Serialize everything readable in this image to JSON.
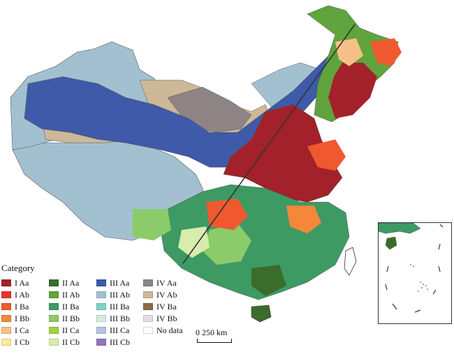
{
  "legend": {
    "title": "Category",
    "items": [
      {
        "label": "I Aa",
        "color": "#a3212a"
      },
      {
        "label": "I Ab",
        "color": "#e8332a"
      },
      {
        "label": "I Ba",
        "color": "#f0592f"
      },
      {
        "label": "I Bb",
        "color": "#f4873a"
      },
      {
        "label": "I Ca",
        "color": "#f8c089"
      },
      {
        "label": "I Cb",
        "color": "#f8ec96"
      },
      {
        "label": "II Aa",
        "color": "#3a6d2c"
      },
      {
        "label": "II Ab",
        "color": "#5fa43d"
      },
      {
        "label": "II Ba",
        "color": "#3d9a63"
      },
      {
        "label": "II Bb",
        "color": "#8ccb6a"
      },
      {
        "label": "II Ca",
        "color": "#a5cf3f"
      },
      {
        "label": "II Cb",
        "color": "#d9ecae"
      },
      {
        "label": "III Aa",
        "color": "#3e5aa8"
      },
      {
        "label": "III Ab",
        "color": "#a3c0d0"
      },
      {
        "label": "III Ba",
        "color": "#7fd3c8"
      },
      {
        "label": "III Bb",
        "color": "#d2ecde"
      },
      {
        "label": "III Ca",
        "color": "#b4c4e6"
      },
      {
        "label": "III Cb",
        "color": "#8f77b8"
      },
      {
        "label": "IV Aa",
        "color": "#8e8486"
      },
      {
        "label": "IV Ab",
        "color": "#cdb898"
      },
      {
        "label": "IV Ba",
        "color": "#8a6a4a"
      },
      {
        "label": "IV Bb",
        "color": "#e6dde3"
      },
      {
        "label": "No data",
        "color": "#ffffff"
      }
    ]
  },
  "scale_bar": {
    "label": "0   250 km"
  },
  "colors": {
    "boundary": "#555555",
    "hu_line": "#333333",
    "background": "#ffffff"
  }
}
